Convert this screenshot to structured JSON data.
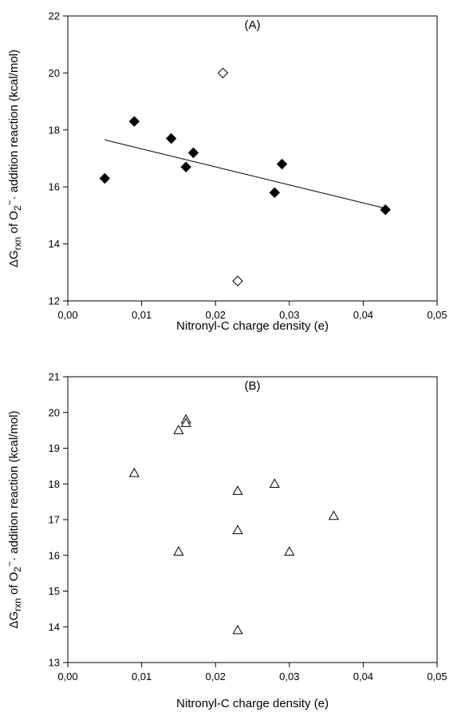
{
  "chart_data": [
    {
      "type": "scatter",
      "panel_label": "(A)",
      "xlabel": "Nitronyl-C charge density (e)",
      "ylabel": {
        "prefix": "ΔG",
        "sub1": "rxn",
        "middle": " of O",
        "sub2": "2",
        "sup": "−",
        "suffix": "· addition reaction (kcal/mol)"
      },
      "xlim": [
        0.0,
        0.05
      ],
      "ylim": [
        12,
        22
      ],
      "xticks": [
        "0,00",
        "0,01",
        "0,02",
        "0,03",
        "0,04",
        "0,05"
      ],
      "xtick_values": [
        0.0,
        0.01,
        0.02,
        0.03,
        0.04,
        0.05
      ],
      "yticks": [
        "12",
        "14",
        "16",
        "18",
        "20",
        "22"
      ],
      "ytick_values": [
        12,
        14,
        16,
        18,
        20,
        22
      ],
      "series": [
        {
          "marker": "diamond-filled",
          "x": [
            0.005,
            0.009,
            0.014,
            0.016,
            0.017,
            0.028,
            0.029,
            0.043
          ],
          "y": [
            16.3,
            18.3,
            17.7,
            16.7,
            17.2,
            15.8,
            16.8,
            15.2
          ]
        },
        {
          "marker": "diamond-open",
          "x": [
            0.021,
            0.023
          ],
          "y": [
            20.0,
            12.7
          ]
        }
      ],
      "trendline": {
        "x": [
          0.005,
          0.043
        ],
        "y": [
          17.65,
          15.25
        ]
      }
    },
    {
      "type": "scatter",
      "panel_label": "(B)",
      "xlabel": "Nitronyl-C charge density (e)",
      "ylabel": {
        "prefix": "ΔG",
        "sub1": "rxn",
        "middle": " of O",
        "sub2": "2",
        "sup": "−",
        "suffix": "· addition reaction (kcal/mol)"
      },
      "xlim": [
        0.0,
        0.05
      ],
      "ylim": [
        13,
        21
      ],
      "xticks": [
        "0,00",
        "0,01",
        "0,02",
        "0,03",
        "0,04",
        "0,05"
      ],
      "xtick_values": [
        0.0,
        0.01,
        0.02,
        0.03,
        0.04,
        0.05
      ],
      "yticks": [
        "13",
        "14",
        "15",
        "16",
        "17",
        "18",
        "19",
        "20",
        "21"
      ],
      "ytick_values": [
        13,
        14,
        15,
        16,
        17,
        18,
        19,
        20,
        21
      ],
      "series": [
        {
          "marker": "triangle-open",
          "x": [
            0.009,
            0.015,
            0.015,
            0.016,
            0.016,
            0.023,
            0.023,
            0.023,
            0.028,
            0.03,
            0.036
          ],
          "y": [
            18.3,
            19.5,
            16.1,
            19.8,
            19.7,
            17.8,
            16.7,
            13.9,
            18.0,
            16.1,
            17.1
          ]
        }
      ]
    }
  ]
}
